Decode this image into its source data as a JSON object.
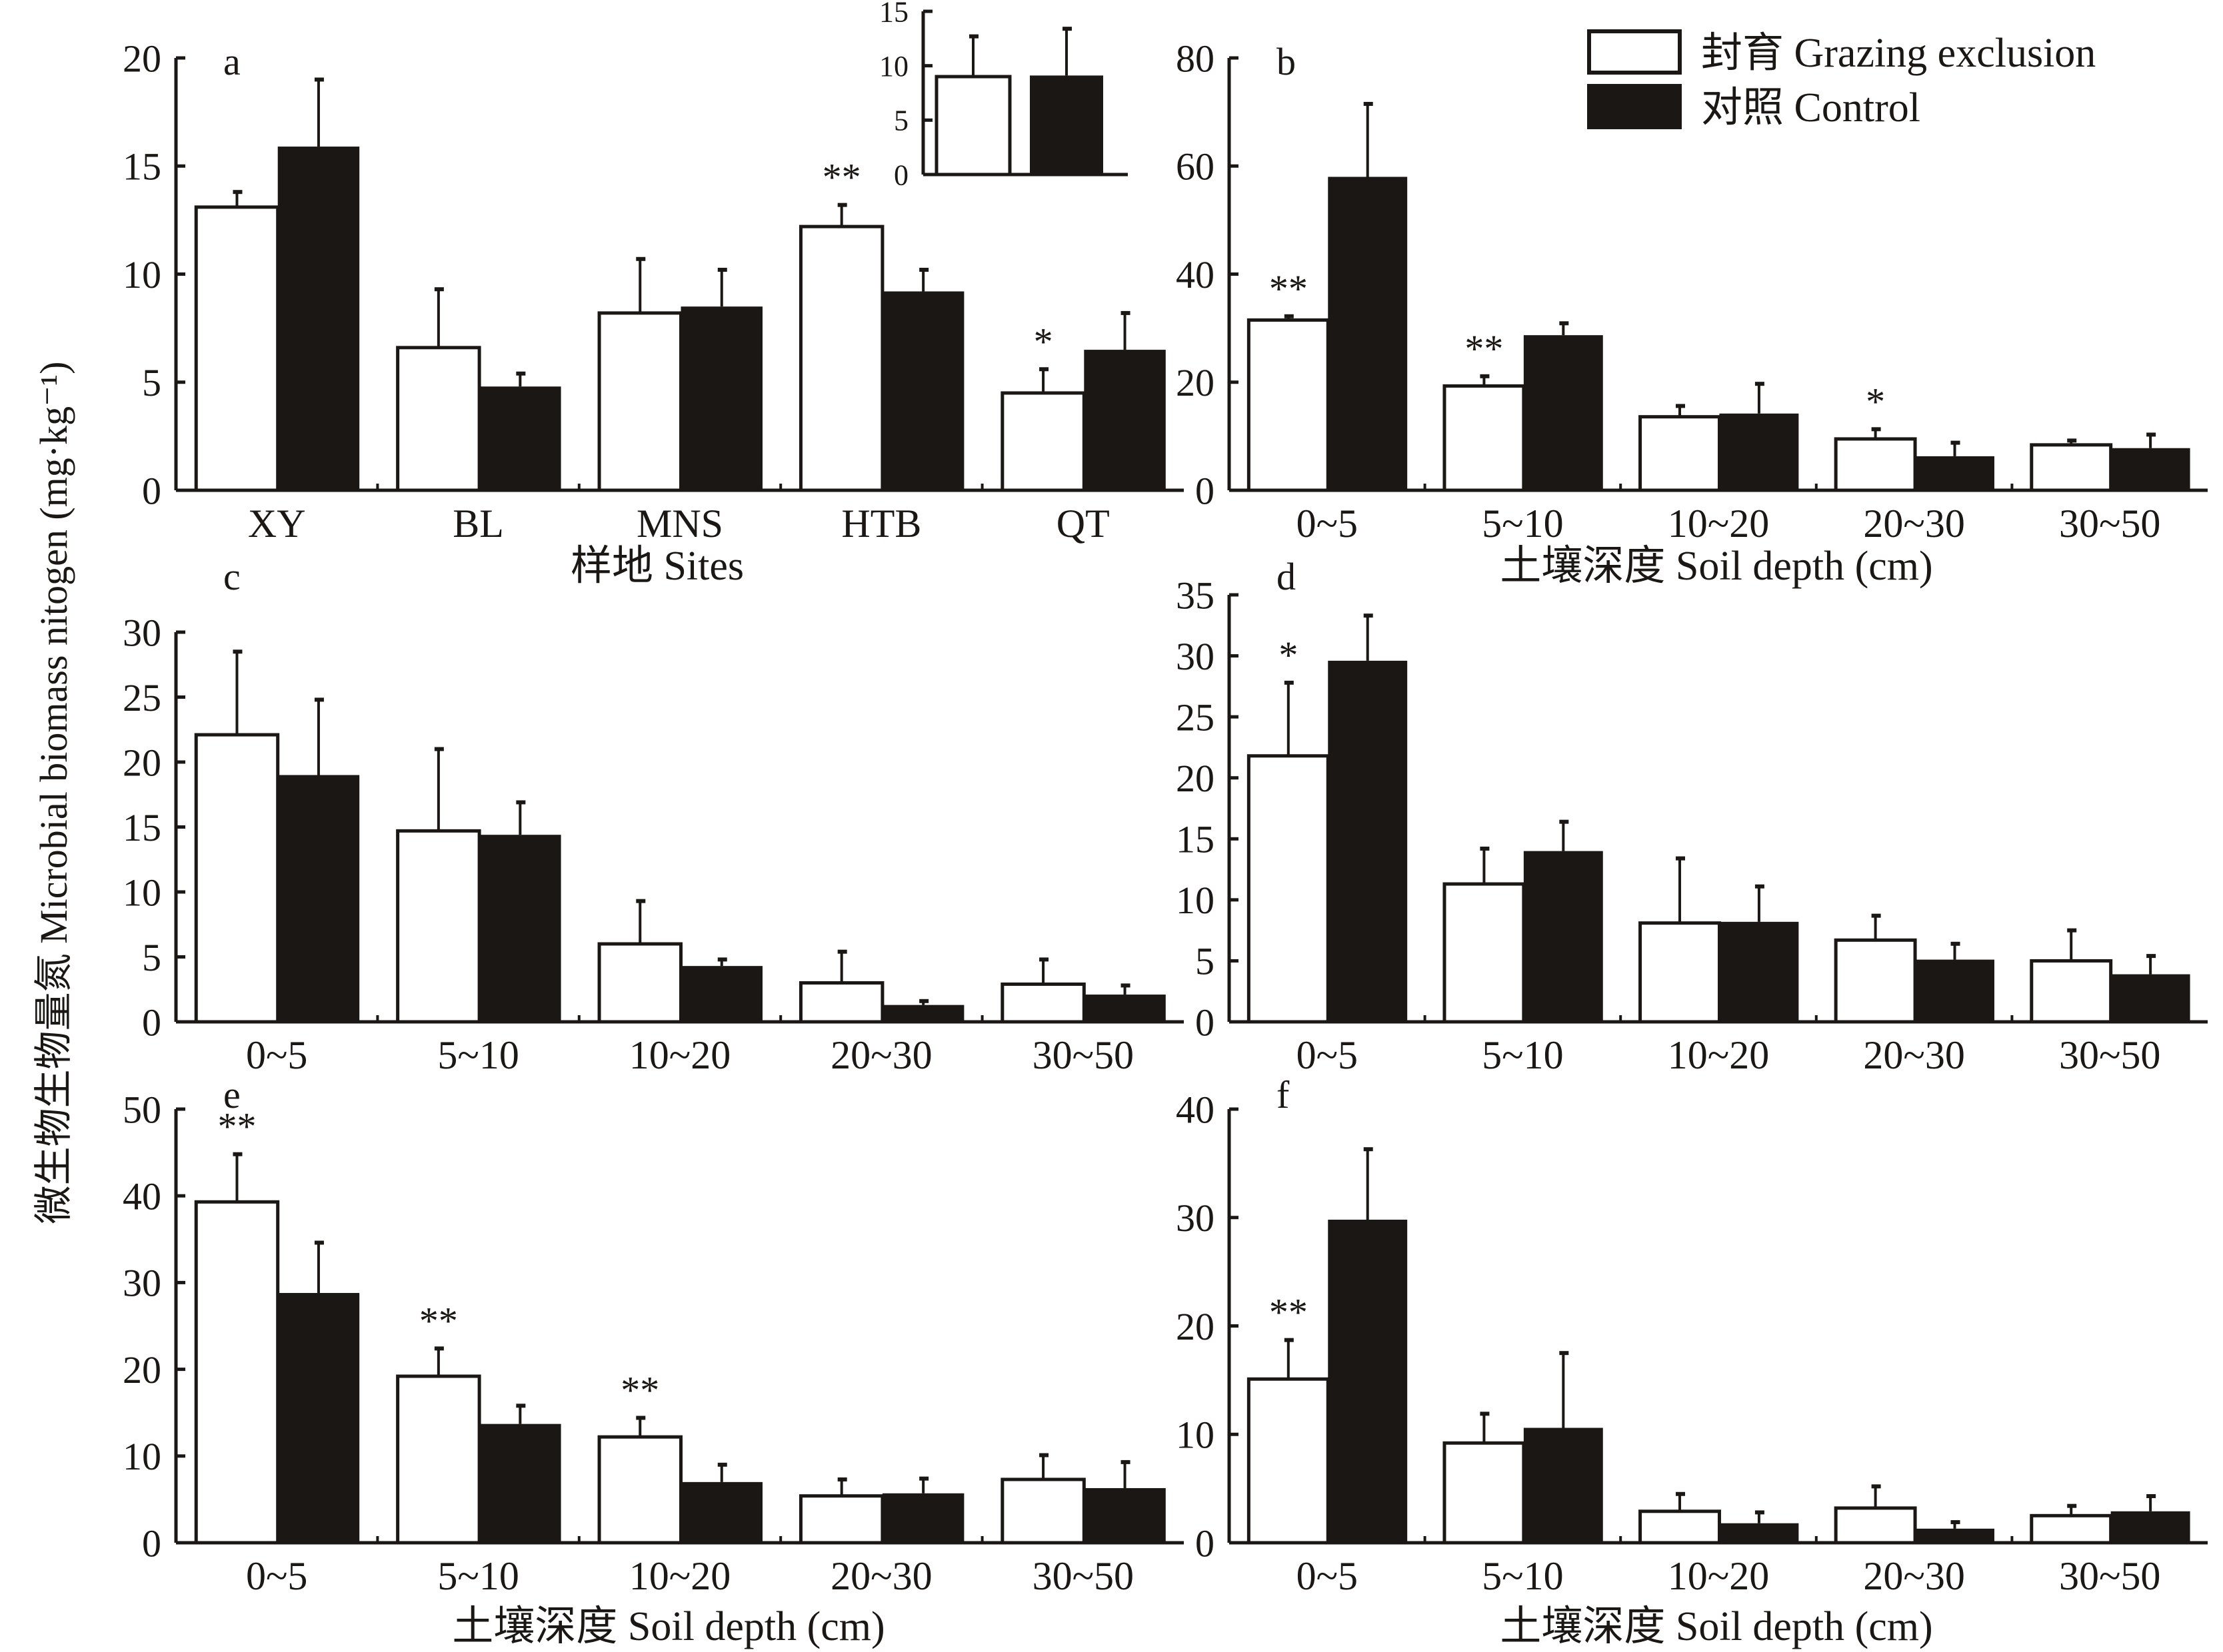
{
  "y_axis_label": "微生物生物量氮 Microbial biomass nitogen (mg·kg⁻¹)",
  "legend": [
    {
      "label": "封育 Grazing exclusion",
      "color": "#ffffff"
    },
    {
      "label": "对照 Control",
      "color": "#1a1714"
    }
  ],
  "colors": {
    "axis": "#1a1714",
    "exclusion": "#ffffff",
    "control": "#1a1714"
  },
  "chart_data": [
    {
      "panel": "a",
      "type": "bar",
      "xlabel": "样地 Sites",
      "ylim": [
        0,
        20
      ],
      "yticks": [
        0,
        5,
        10,
        15,
        20
      ],
      "categories": [
        "XY",
        "BL",
        "MNS",
        "HTB",
        "QT"
      ],
      "series": [
        {
          "name": "封育 Grazing exclusion",
          "values": [
            13.1,
            6.6,
            8.2,
            12.2,
            4.5
          ],
          "errors": [
            0.7,
            2.7,
            2.5,
            1.0,
            1.1
          ]
        },
        {
          "name": "对照 Control",
          "values": [
            15.9,
            4.8,
            8.5,
            9.2,
            6.5
          ],
          "errors": [
            3.1,
            0.6,
            1.7,
            1.0,
            1.7
          ]
        }
      ],
      "significance": [
        "",
        "",
        "",
        "**",
        "*"
      ]
    },
    {
      "panel": "inset",
      "type": "bar",
      "xlabel": "",
      "ylim": [
        0,
        15
      ],
      "yticks": [
        0,
        5,
        10,
        15
      ],
      "categories": [
        ""
      ],
      "series": [
        {
          "name": "封育 Grazing exclusion",
          "values": [
            9.0
          ],
          "errors": [
            3.7
          ]
        },
        {
          "name": "对照 Control",
          "values": [
            9.1
          ],
          "errors": [
            4.3
          ]
        }
      ],
      "significance": [
        ""
      ]
    },
    {
      "panel": "b",
      "type": "bar",
      "xlabel": "土壤深度 Soil depth (cm)",
      "ylim": [
        0,
        80
      ],
      "yticks": [
        0,
        20,
        40,
        60,
        80
      ],
      "categories": [
        "0~5",
        "5~10",
        "10~20",
        "20~30",
        "30~50"
      ],
      "series": [
        {
          "name": "封育 Grazing exclusion",
          "values": [
            31.5,
            19.3,
            13.6,
            9.5,
            8.4
          ],
          "errors": [
            0.7,
            1.8,
            2.0,
            1.8,
            0.8
          ]
        },
        {
          "name": "对照 Control",
          "values": [
            58.0,
            28.7,
            14.2,
            6.3,
            7.8
          ],
          "errors": [
            13.5,
            2.2,
            5.5,
            2.5,
            2.5
          ]
        }
      ],
      "significance": [
        "**",
        "**",
        "",
        "*",
        ""
      ]
    },
    {
      "panel": "c",
      "type": "bar",
      "xlabel": "",
      "ylim": [
        0,
        30
      ],
      "yticks": [
        0,
        5,
        10,
        15,
        20,
        25,
        30
      ],
      "categories": [
        "0~5",
        "5~10",
        "10~20",
        "20~30",
        "30~50"
      ],
      "series": [
        {
          "name": "封育 Grazing exclusion",
          "values": [
            22.1,
            14.7,
            6.0,
            3.0,
            2.9
          ],
          "errors": [
            6.4,
            6.3,
            3.3,
            2.4,
            1.9
          ]
        },
        {
          "name": "对照 Control",
          "values": [
            19.0,
            14.4,
            4.3,
            1.3,
            2.1
          ],
          "errors": [
            5.8,
            2.5,
            0.5,
            0.3,
            0.7
          ]
        }
      ],
      "significance": [
        "",
        "",
        "",
        "",
        ""
      ]
    },
    {
      "panel": "d",
      "type": "bar",
      "xlabel": "",
      "ylim": [
        0,
        35
      ],
      "yticks": [
        0,
        5,
        10,
        15,
        20,
        25,
        30,
        35
      ],
      "categories": [
        "0~5",
        "5~10",
        "10~20",
        "20~30",
        "30~50"
      ],
      "series": [
        {
          "name": "封育 Grazing exclusion",
          "values": [
            21.8,
            11.3,
            8.1,
            6.7,
            5.0
          ],
          "errors": [
            6.0,
            2.9,
            5.3,
            2.0,
            2.5
          ]
        },
        {
          "name": "对照 Control",
          "values": [
            29.6,
            14.0,
            8.2,
            5.1,
            3.9
          ],
          "errors": [
            3.7,
            2.4,
            2.9,
            1.3,
            1.5
          ]
        }
      ],
      "significance": [
        "*",
        "",
        "",
        "",
        ""
      ]
    },
    {
      "panel": "e",
      "type": "bar",
      "xlabel": "土壤深度 Soil depth (cm)",
      "ylim": [
        0,
        50
      ],
      "yticks": [
        0,
        10,
        20,
        30,
        40,
        50
      ],
      "categories": [
        "0~5",
        "5~10",
        "10~20",
        "20~30",
        "30~50"
      ],
      "series": [
        {
          "name": "封育 Grazing exclusion",
          "values": [
            39.3,
            19.2,
            12.2,
            5.4,
            7.3
          ],
          "errors": [
            5.5,
            3.2,
            2.2,
            1.9,
            2.8
          ]
        },
        {
          "name": "对照 Control",
          "values": [
            28.8,
            13.7,
            7.0,
            5.7,
            6.3
          ],
          "errors": [
            5.8,
            2.1,
            2.0,
            1.7,
            3.0
          ]
        }
      ],
      "significance": [
        "**",
        "**",
        "**",
        "",
        ""
      ]
    },
    {
      "panel": "f",
      "type": "bar",
      "xlabel": "土壤深度 Soil depth (cm)",
      "ylim": [
        0,
        40
      ],
      "yticks": [
        0,
        10,
        20,
        30,
        40
      ],
      "categories": [
        "0~5",
        "5~10",
        "10~20",
        "20~30",
        "30~50"
      ],
      "series": [
        {
          "name": "封育 Grazing exclusion",
          "values": [
            15.1,
            9.2,
            2.9,
            3.2,
            2.5
          ],
          "errors": [
            3.6,
            2.7,
            1.6,
            2.0,
            0.9
          ]
        },
        {
          "name": "对照 Control",
          "values": [
            29.8,
            10.6,
            1.8,
            1.3,
            2.9
          ],
          "errors": [
            6.5,
            6.9,
            1.0,
            0.6,
            1.4
          ]
        }
      ],
      "significance": [
        "**",
        "",
        "",
        "",
        ""
      ]
    }
  ]
}
